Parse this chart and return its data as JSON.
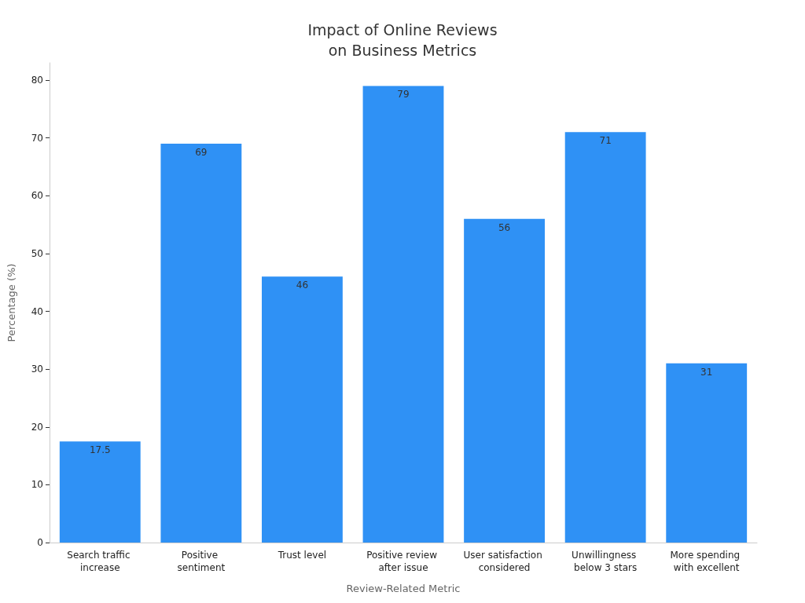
{
  "chart_data": {
    "type": "bar",
    "title": "Impact of Online Reviews\non Business Metrics",
    "xlabel": "Review-Related Metric",
    "ylabel": "Percentage (%)",
    "categories": [
      "Search traffic increase",
      "Positive sentiment",
      "Trust level",
      "Positive review after issue",
      "User satisfaction considered",
      "Unwillingness below 3 stars",
      "More spending with excellent"
    ],
    "values": [
      17.5,
      69,
      46,
      79,
      56,
      71,
      31
    ],
    "color": "#2f91f5",
    "ylim": [
      0,
      83
    ],
    "yticks": [
      0,
      10,
      20,
      30,
      40,
      50,
      60,
      70,
      80
    ],
    "grid": false,
    "data_labels": true
  }
}
